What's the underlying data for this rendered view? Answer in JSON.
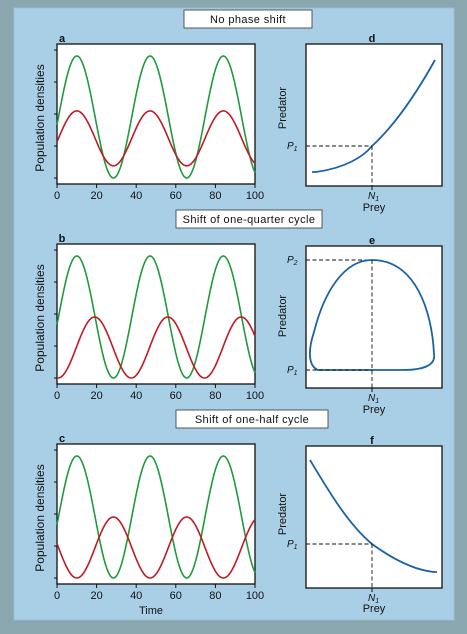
{
  "banners": [
    "No phase shift",
    "Shift of one-quarter cycle",
    "Shift of one-half cycle"
  ],
  "panel_labels": {
    "time_panels": [
      "a",
      "b",
      "c"
    ],
    "phase_panels": [
      "d",
      "e",
      "f"
    ]
  },
  "time_axis": {
    "ylabel": "Population densities",
    "xlabel": "Time",
    "ticks": [
      "0",
      "20",
      "40",
      "60",
      "80",
      "100"
    ],
    "xlim": [
      0,
      100
    ]
  },
  "phase_axis": {
    "ylabel": "Predator",
    "xlabel": "Prey",
    "n_label": "N",
    "n_sub": "1",
    "p_label": "P",
    "p1_sub": "1",
    "p2_sub": "2"
  },
  "colors": {
    "prey": "#1f9a3c",
    "predator": "#c01b24",
    "phase_curve": "#1b62a8",
    "background": "#a9cfe6"
  },
  "chart_data": [
    {
      "type": "line",
      "panel": "a",
      "x_range": [
        0,
        100
      ],
      "y_range": [
        0,
        1
      ],
      "series": [
        {
          "role": "prey",
          "color": "green",
          "period": 37,
          "peak_at": 10,
          "min": 0.0,
          "max": 1.0,
          "phase_shift_cycles": 0
        },
        {
          "role": "predator",
          "color": "red",
          "period": 37,
          "peak_at": 10,
          "min": 0.1,
          "max": 0.55,
          "phase_shift_cycles": 0
        }
      ]
    },
    {
      "type": "line",
      "panel": "b",
      "x_range": [
        0,
        100
      ],
      "y_range": [
        0,
        1
      ],
      "series": [
        {
          "role": "prey",
          "color": "green",
          "period": 37,
          "peak_at": 10,
          "min": 0.0,
          "max": 1.0,
          "phase_shift_cycles": 0
        },
        {
          "role": "predator",
          "color": "red",
          "period": 37,
          "peak_at": 19,
          "min": 0.0,
          "max": 0.5,
          "phase_shift_cycles": 0.25
        }
      ]
    },
    {
      "type": "line",
      "panel": "c",
      "x_range": [
        0,
        100
      ],
      "y_range": [
        0,
        1
      ],
      "series": [
        {
          "role": "prey",
          "color": "green",
          "period": 37,
          "peak_at": 10,
          "min": 0.0,
          "max": 1.0,
          "phase_shift_cycles": 0
        },
        {
          "role": "predator",
          "color": "red",
          "period": 37,
          "peak_at": 28.5,
          "min": 0.0,
          "max": 0.5,
          "phase_shift_cycles": 0.5
        }
      ]
    },
    {
      "type": "scatter",
      "panel": "d",
      "curve": "increasing"
    },
    {
      "type": "scatter",
      "panel": "e",
      "curve": "closed-loop"
    },
    {
      "type": "scatter",
      "panel": "f",
      "curve": "decreasing"
    }
  ]
}
